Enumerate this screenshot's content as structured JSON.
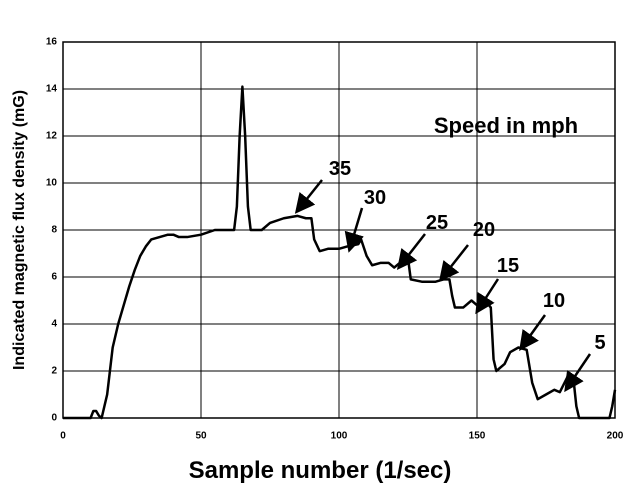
{
  "chart_data": {
    "type": "line",
    "x_label": "Sample number (1/sec)",
    "y_label": "Indicated magnetic flux density (mG)",
    "xlim": [
      0,
      200
    ],
    "xticks": [
      0,
      50,
      100,
      150,
      200
    ],
    "ylim": [
      0,
      16
    ],
    "yticks": [
      0,
      2,
      4,
      6,
      8,
      10,
      12,
      14,
      16
    ],
    "grid": true,
    "annotations": [
      "Speed in mph",
      "35",
      "30",
      "25",
      "20",
      "15",
      "10",
      "5"
    ],
    "series": [
      {
        "color": "#000000",
        "x": [
          0,
          10,
          11,
          12,
          13,
          14,
          15,
          16,
          17,
          18,
          20,
          22,
          24,
          26,
          28,
          30,
          32,
          35,
          38,
          40,
          42,
          45,
          50,
          55,
          58,
          62,
          63,
          64,
          65,
          66,
          67,
          68,
          72,
          75,
          80,
          85,
          88,
          90,
          91,
          93,
          96,
          100,
          103,
          107,
          108,
          110,
          112,
          115,
          118,
          120,
          122,
          125,
          126,
          130,
          135,
          138,
          140,
          141,
          142,
          145,
          148,
          150,
          153,
          155,
          156,
          157,
          160,
          162,
          165,
          168,
          170,
          172,
          175,
          178,
          180,
          183,
          185,
          186,
          187,
          190,
          195,
          198,
          199,
          200
        ],
        "values": [
          0,
          0,
          0.3,
          0.3,
          0.1,
          0,
          0.5,
          1.0,
          2.0,
          3.0,
          4.0,
          4.8,
          5.6,
          6.3,
          6.9,
          7.3,
          7.6,
          7.7,
          7.8,
          7.8,
          7.7,
          7.7,
          7.8,
          8.0,
          8.0,
          8.0,
          9,
          12,
          14.1,
          12,
          9,
          8.0,
          8.0,
          8.3,
          8.5,
          8.6,
          8.5,
          8.5,
          7.6,
          7.1,
          7.2,
          7.2,
          7.3,
          7.4,
          7.6,
          6.9,
          6.5,
          6.6,
          6.6,
          6.4,
          6.6,
          6.8,
          5.9,
          5.8,
          5.8,
          5.9,
          5.9,
          5.2,
          4.7,
          4.7,
          5.0,
          4.8,
          5.0,
          4.7,
          2.5,
          2.0,
          2.3,
          2.8,
          3.0,
          2.9,
          1.5,
          0.8,
          1.0,
          1.2,
          1.1,
          1.8,
          1.6,
          0.5,
          0,
          0,
          0,
          0,
          0.5,
          1.2
        ]
      }
    ]
  }
}
